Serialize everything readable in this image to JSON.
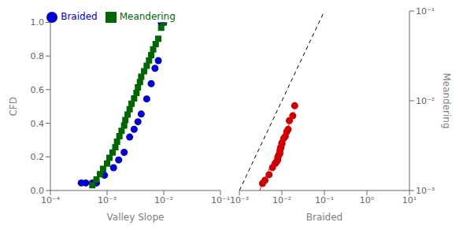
{
  "chart_data": [
    {
      "type": "scatter",
      "x_label": "Valley Slope",
      "y_label": "CFD",
      "log": "x",
      "xlim": [
        0.0001,
        0.1
      ],
      "xticks": [
        {
          "value": 0.0001,
          "label": "10⁻⁴"
        },
        {
          "value": 0.001,
          "label": "10⁻³"
        },
        {
          "value": 0.01,
          "label": "10⁻²"
        },
        {
          "value": 0.1,
          "label": "10⁻¹"
        }
      ],
      "ylim": [
        0,
        1
      ],
      "yticks": [
        {
          "value": 0,
          "label": "0.0"
        },
        0.2,
        0.4,
        0.6,
        0.8,
        {
          "value": 1,
          "label": "1.0"
        }
      ],
      "grid": false,
      "legend": "top",
      "series": [
        {
          "name": "Braided",
          "type": "scatter",
          "color": "#0000cc",
          "marker": "circle",
          "x": [
            0.00035,
            0.00042,
            0.00055,
            0.00065,
            0.0009,
            0.0013,
            0.0016,
            0.002,
            0.0025,
            0.003,
            0.0035,
            0.004,
            0.005,
            0.006,
            0.007,
            0.008,
            0.009,
            0.01
          ],
          "values": [
            0.045,
            0.045,
            0.045,
            0.045,
            0.091,
            0.136,
            0.182,
            0.227,
            0.318,
            0.364,
            0.409,
            0.455,
            0.545,
            0.636,
            0.727,
            0.773,
            1.0,
            1.0
          ]
        },
        {
          "name": "Meandering",
          "type": "scatter",
          "color": "#006600",
          "marker": "square",
          "x": [
            0.00055,
            0.00065,
            0.00075,
            0.00085,
            0.001,
            0.0011,
            0.00125,
            0.0014,
            0.0015,
            0.00165,
            0.0018,
            0.002,
            0.0021,
            0.0023,
            0.0025,
            0.0027,
            0.003,
            0.0033,
            0.0035,
            0.0038,
            0.004,
            0.0045,
            0.005,
            0.0055,
            0.006,
            0.0065,
            0.0072,
            0.008,
            0.009,
            0.01
          ],
          "values": [
            0.032,
            0.065,
            0.097,
            0.129,
            0.161,
            0.194,
            0.226,
            0.258,
            0.29,
            0.323,
            0.355,
            0.387,
            0.419,
            0.452,
            0.484,
            0.516,
            0.548,
            0.581,
            0.613,
            0.645,
            0.677,
            0.71,
            0.742,
            0.774,
            0.806,
            0.839,
            0.871,
            0.903,
            0.968,
            1.0
          ]
        }
      ]
    },
    {
      "type": "scatter",
      "x_label": "Braided",
      "y_label": "Meandering",
      "log": true,
      "xlim": [
        0.001,
        10
      ],
      "xticks": [
        {
          "value": 0.001,
          "label": "10⁻³"
        },
        {
          "value": 0.01,
          "label": "10⁻²"
        },
        {
          "value": 0.1,
          "label": "10⁻¹"
        },
        {
          "value": 1,
          "label": "10⁰"
        },
        {
          "value": 10,
          "label": "10¹"
        }
      ],
      "ylim": [
        0.001,
        0.1
      ],
      "yticks": [
        {
          "value": 0.001,
          "label": "10⁻³"
        },
        {
          "value": 0.01,
          "label": "10⁻²"
        },
        {
          "value": 0.1,
          "label": "10⁻¹"
        }
      ],
      "grid": false,
      "series": [
        {
          "type": "scatter",
          "color": "#cc0000",
          "marker": "circle",
          "x": [
            0.0035,
            0.004,
            0.005,
            0.006,
            0.007,
            0.0075,
            0.008,
            0.0082,
            0.0085,
            0.009,
            0.009,
            0.0093,
            0.0095,
            0.01,
            0.01,
            0.011,
            0.012,
            0.013,
            0.014,
            0.015,
            0.018,
            0.02
          ],
          "values": [
            0.0012,
            0.0013,
            0.0015,
            0.0018,
            0.002,
            0.0021,
            0.0022,
            0.0024,
            0.0025,
            0.0026,
            0.0028,
            0.003,
            0.003,
            0.0033,
            0.0034,
            0.0038,
            0.004,
            0.0045,
            0.0048,
            0.006,
            0.0068,
            0.0088
          ]
        },
        {
          "type": "line",
          "color": "#000000",
          "line_style": "dashed",
          "x": [
            0.001,
            0.1
          ],
          "values": [
            0.001,
            0.1
          ]
        },
        {
          "type": "line",
          "color": "#ff0000",
          "line_style": "dashed",
          "x": [
            0.003,
            0.02
          ],
          "values": [
            0.001,
            0.0075
          ]
        }
      ]
    }
  ]
}
